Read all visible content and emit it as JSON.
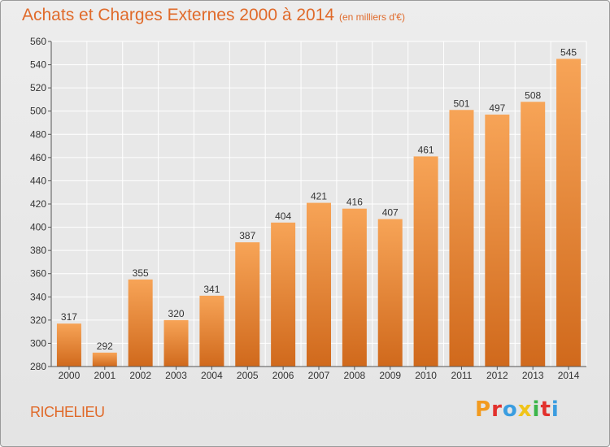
{
  "title": "Achats et Charges Externes 2000 à 2014",
  "subtitle": "(en milliers d'€)",
  "town": "RICHELIEU",
  "logo_text": "Proxiti",
  "colors": {
    "title": "#e06a2a",
    "bar_top": "#f7a457",
    "bar_bottom": "#d0691c",
    "grid": "#ffffff",
    "logo": [
      "#f29a1f",
      "#e2312d",
      "#3a9de0",
      "#f0c419",
      "#3bb54a",
      "#e2312d",
      "#3a9de0"
    ]
  },
  "chart_data": {
    "type": "bar",
    "title": "Achats et Charges Externes 2000 à 2014",
    "subtitle": "(en milliers d'€)",
    "xlabel": "",
    "ylabel": "",
    "categories": [
      "2000",
      "2001",
      "2002",
      "2003",
      "2004",
      "2005",
      "2006",
      "2007",
      "2008",
      "2009",
      "2010",
      "2011",
      "2012",
      "2013",
      "2014"
    ],
    "values": [
      317,
      292,
      355,
      320,
      341,
      387,
      404,
      421,
      416,
      407,
      461,
      501,
      497,
      508,
      545
    ],
    "ylim": [
      280,
      560
    ],
    "yticks": [
      280,
      300,
      320,
      340,
      360,
      380,
      400,
      420,
      440,
      460,
      480,
      500,
      520,
      540,
      560
    ],
    "grid": true,
    "legend": "none"
  }
}
